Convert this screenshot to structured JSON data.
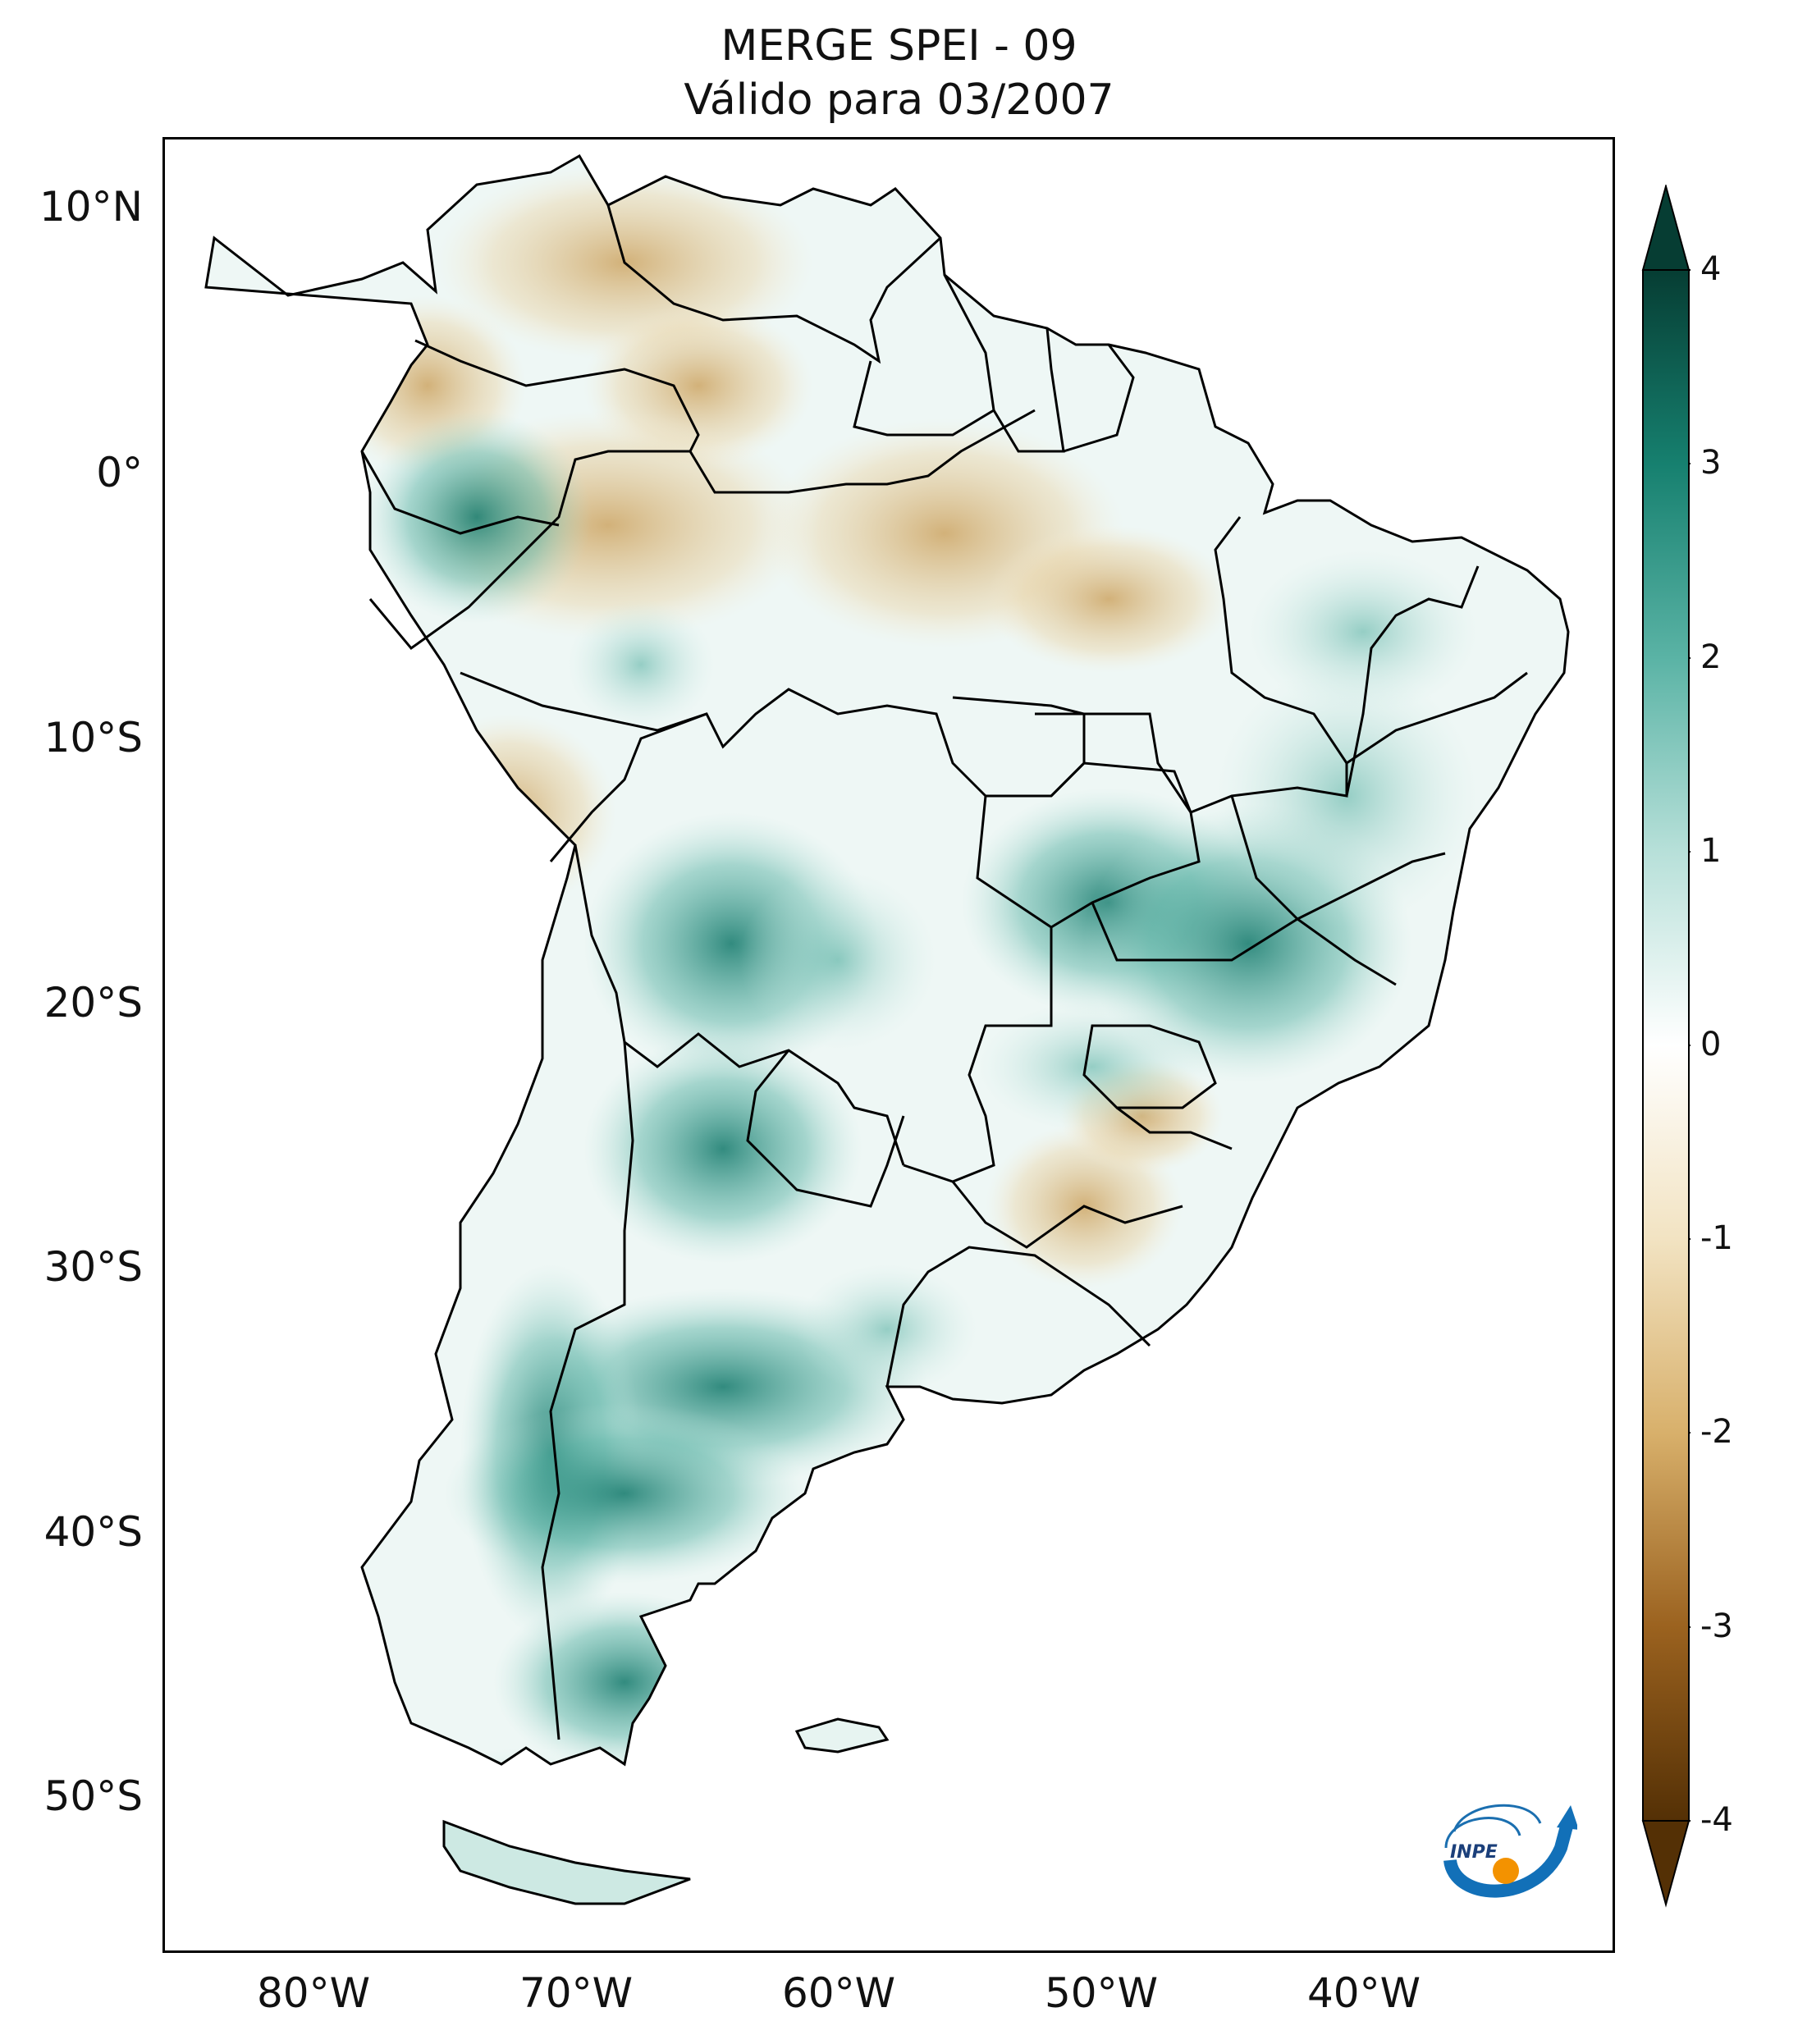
{
  "title": {
    "line1": "MERGE   SPEI - 09",
    "line2": "Válido para 03/2007"
  },
  "map": {
    "lat_ticks": [
      "10°N",
      "0°",
      "10°S",
      "20°S",
      "30°S",
      "40°S",
      "50°S"
    ],
    "lon_ticks": [
      "80°W",
      "70°W",
      "60°W",
      "50°W",
      "40°W"
    ]
  },
  "colorbar": {
    "ticks": [
      "4",
      "3",
      "2",
      "1",
      "0",
      "-1",
      "-2",
      "-3",
      "-4"
    ],
    "min": -4,
    "max": 4,
    "extend": "both",
    "colors": {
      "max": "#063d33",
      "strong_wet": "#16806f",
      "wet": "#5ab3a5",
      "light_wet": "#b7e0d9",
      "neutral": "#ffffff",
      "light_dry": "#f2e3c2",
      "dry": "#d8b06b",
      "strong_dry": "#9b621f",
      "min": "#543005"
    }
  },
  "logo": {
    "text": "INPE"
  }
}
